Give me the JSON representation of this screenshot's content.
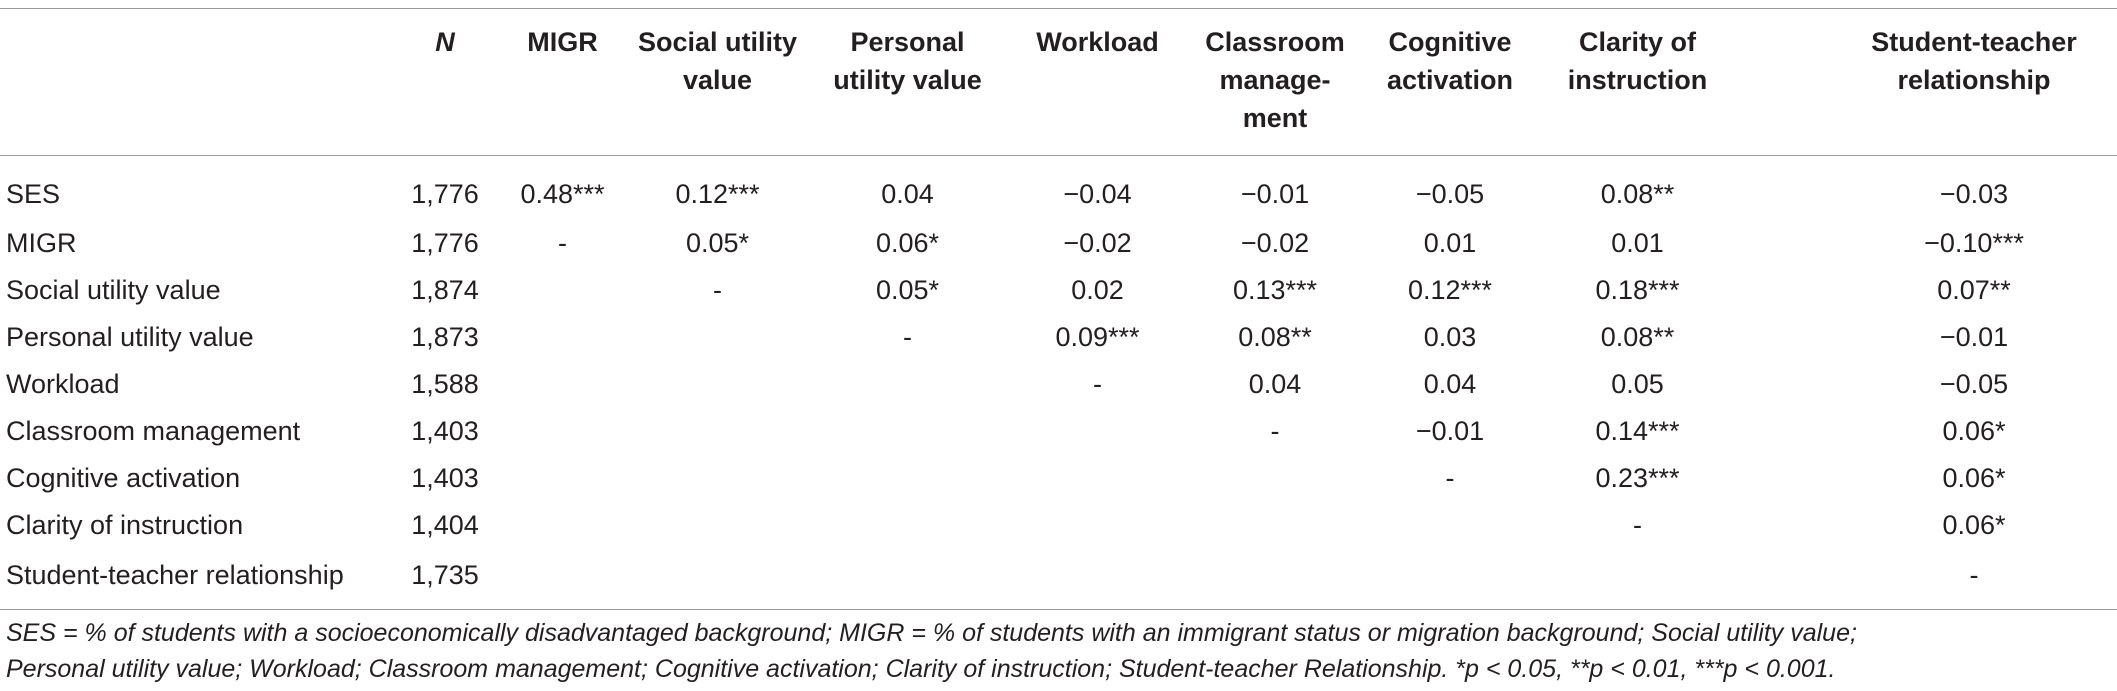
{
  "table": {
    "columns": [
      {
        "key": "label",
        "label": ""
      },
      {
        "key": "n",
        "label": "N"
      },
      {
        "key": "migr",
        "label": "MIGR"
      },
      {
        "key": "social",
        "label": "Social utility value"
      },
      {
        "key": "personal",
        "label": "Personal utility value"
      },
      {
        "key": "workload",
        "label": "Workload"
      },
      {
        "key": "classroom",
        "label": "Classroom manage-ment"
      },
      {
        "key": "cognitive",
        "label": "Cognitive activation"
      },
      {
        "key": "clarity",
        "label": "Clarity of instruction"
      },
      {
        "key": "relationship",
        "label": "Student-teacher relationship"
      }
    ],
    "rows": [
      {
        "label": "SES",
        "cells": [
          "1,776",
          "0.48***",
          "0.12***",
          "0.04",
          "−0.04",
          "−0.01",
          "−0.05",
          "0.08**",
          "−0.03"
        ]
      },
      {
        "label": "MIGR",
        "cells": [
          "1,776",
          "-",
          "0.05*",
          "0.06*",
          "−0.02",
          "−0.02",
          "0.01",
          "0.01",
          "−0.10***"
        ]
      },
      {
        "label": "Social utility value",
        "cells": [
          "1,874",
          "",
          "-",
          "0.05*",
          "0.02",
          "0.13***",
          "0.12***",
          "0.18***",
          "0.07**"
        ]
      },
      {
        "label": "Personal utility value",
        "cells": [
          "1,873",
          "",
          "",
          "-",
          "0.09***",
          "0.08**",
          "0.03",
          "0.08**",
          "−0.01"
        ]
      },
      {
        "label": "Workload",
        "cells": [
          "1,588",
          "",
          "",
          "",
          "-",
          "0.04",
          "0.04",
          "0.05",
          "−0.05"
        ]
      },
      {
        "label": "Classroom management",
        "cells": [
          "1,403",
          "",
          "",
          "",
          "",
          "-",
          "−0.01",
          "0.14***",
          "0.06*"
        ]
      },
      {
        "label": "Cognitive activation",
        "cells": [
          "1,403",
          "",
          "",
          "",
          "",
          "",
          "-",
          "0.23***",
          "0.06*"
        ]
      },
      {
        "label": "Clarity of instruction",
        "cells": [
          "1,404",
          "",
          "",
          "",
          "",
          "",
          "",
          "-",
          "0.06*"
        ]
      },
      {
        "label": "Student-teacher relationship",
        "cells": [
          "1,735",
          "",
          "",
          "",
          "",
          "",
          "",
          "",
          "-"
        ]
      }
    ]
  },
  "note": {
    "line1": "SES = % of students with a socioeconomically disadvantaged background; MIGR = % of students with an immigrant status or migration background; Social utility value;",
    "line2": "Personal utility value; Workload; Classroom management; Cognitive activation; Clarity of instruction; Student-teacher Relationship. *p < 0.05, **p < 0.01, ***p < 0.001."
  }
}
